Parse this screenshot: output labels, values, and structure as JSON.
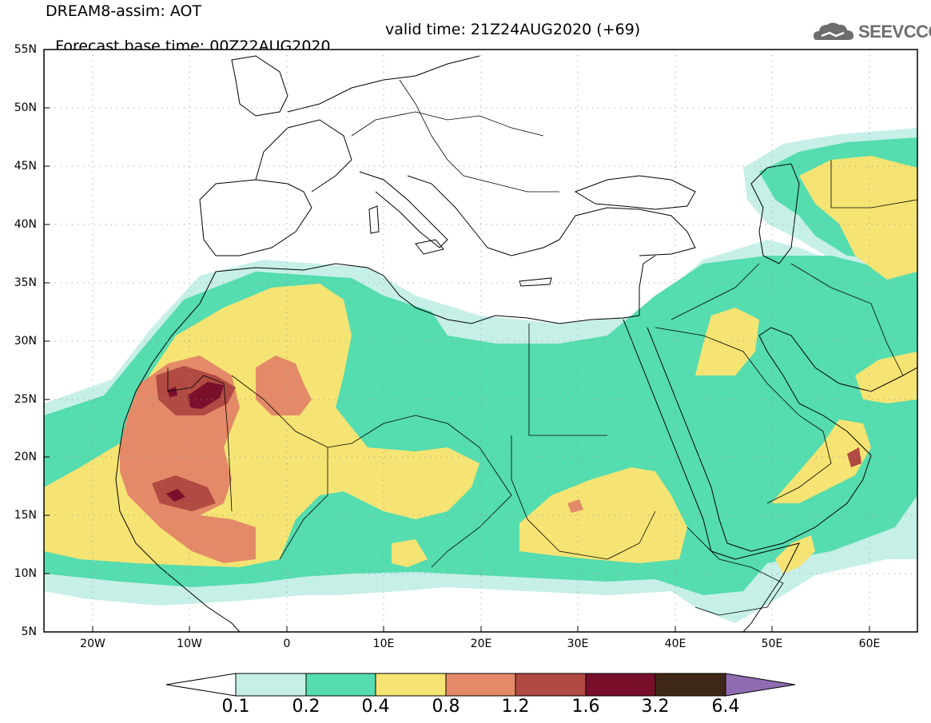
{
  "header": {
    "title_line1": "DREAM8-assim: AOT",
    "base_time": "Forecast base time: 00Z22AUG2020",
    "valid_time": "valid time: 21Z24AUG2020 (+69)",
    "logo_text": "SEEVCCC",
    "logo_icon": "cloud-icon"
  },
  "map": {
    "lon_range": [
      -25,
      65
    ],
    "lat_range": [
      5,
      55
    ],
    "y_ticks": [
      "55N",
      "50N",
      "45N",
      "40N",
      "35N",
      "30N",
      "25N",
      "20N",
      "15N",
      "10N",
      "5N"
    ],
    "x_ticks": [
      "20W",
      "10W",
      "0",
      "10E",
      "20E",
      "30E",
      "40E",
      "50E",
      "60E"
    ]
  },
  "colorbar": {
    "labels": [
      "0.1",
      "0.2",
      "0.4",
      "0.8",
      "1.2",
      "1.6",
      "3.2",
      "6.4"
    ],
    "colors": [
      "#ffffff",
      "#c6efe8",
      "#55dcaf",
      "#f5e473",
      "#e48a68",
      "#b04a42",
      "#7a0f2c",
      "#3f2818",
      "#8e6cb0"
    ]
  }
}
